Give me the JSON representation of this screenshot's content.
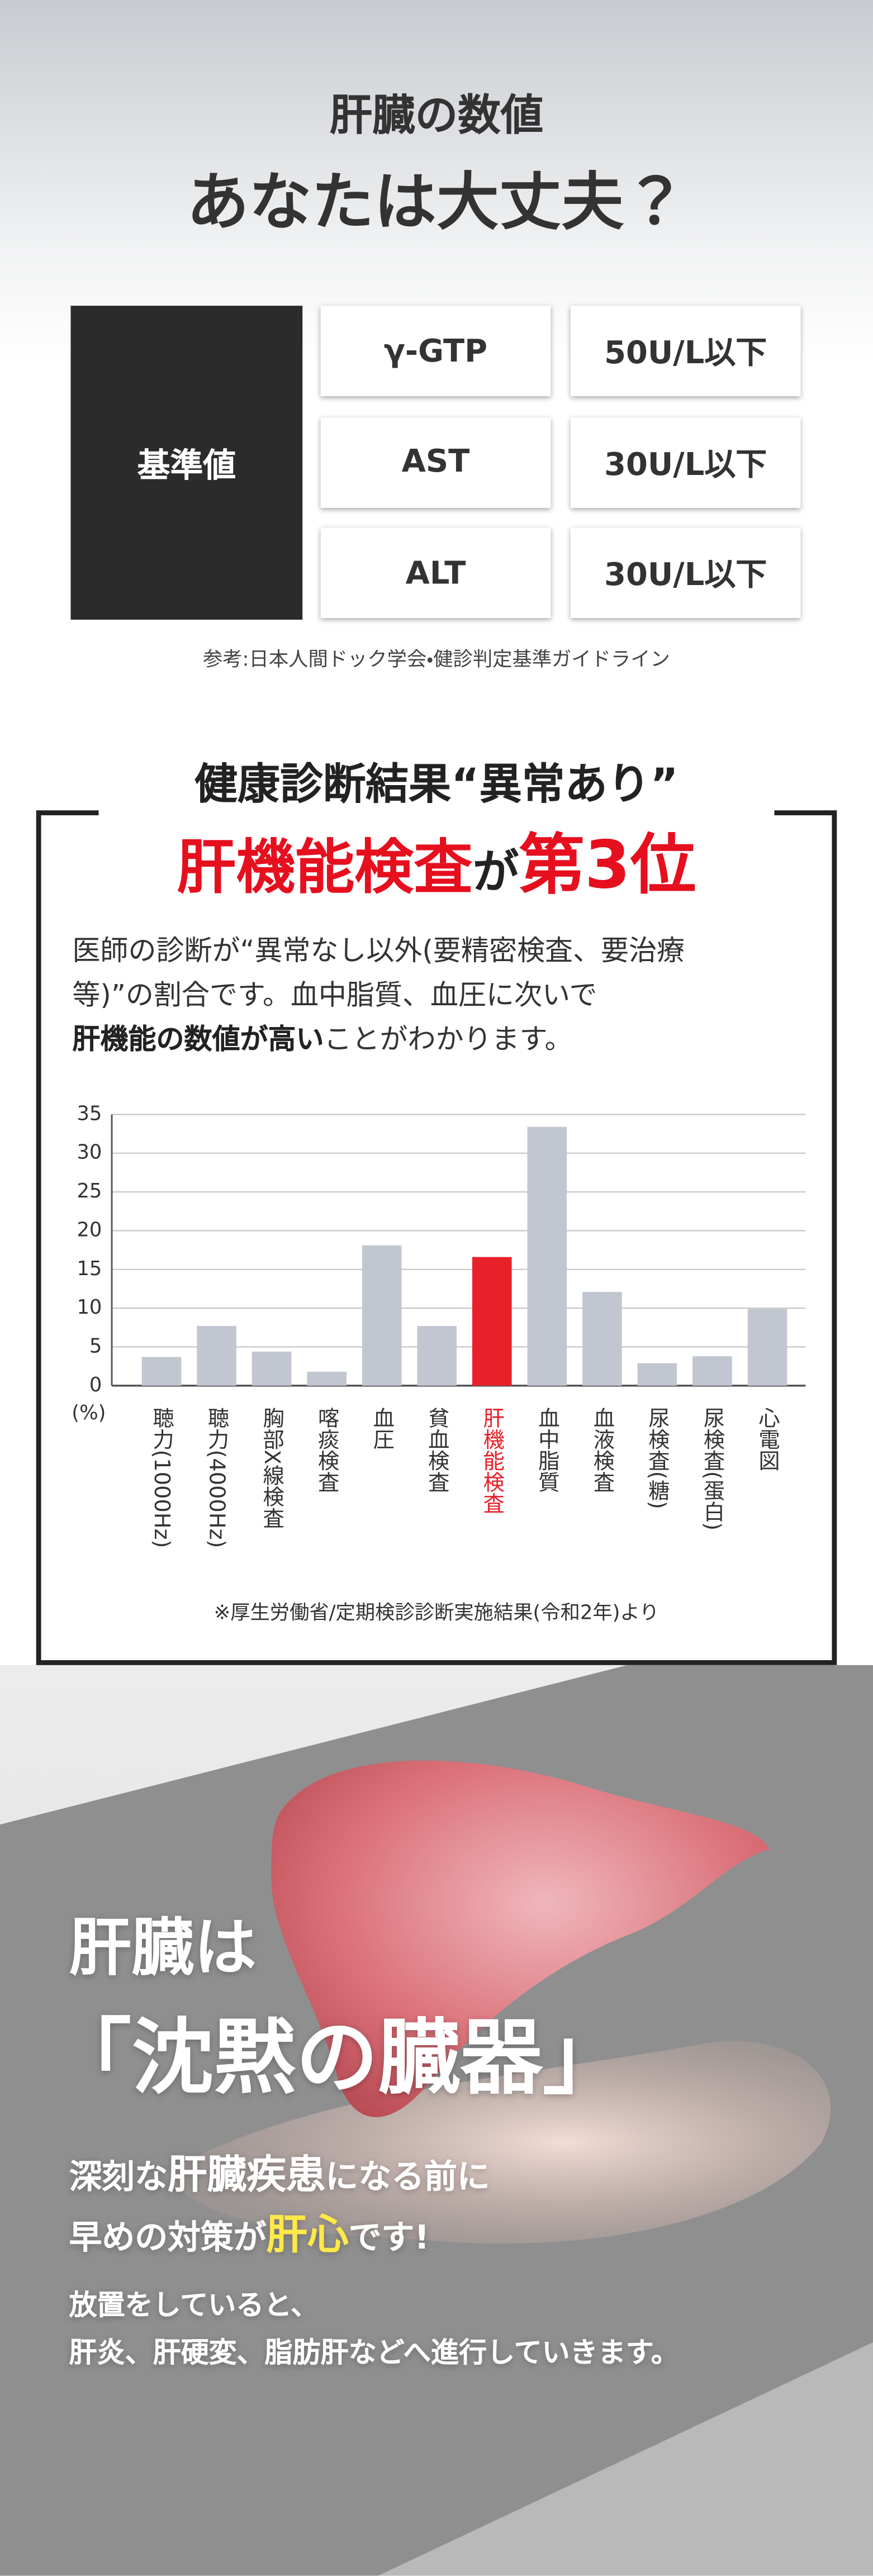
{
  "header": {
    "title": "肝臓の数値",
    "headline": "あなたは大丈夫？"
  },
  "standards": {
    "label": "基準値",
    "rows": [
      [
        "γ-GTP",
        "50U/L以下"
      ],
      [
        "AST",
        "30U/L以下"
      ],
      [
        "ALT",
        "30U/L以下"
      ]
    ],
    "note": "参考:日本人間ドック学会・健診判定基準ガイドライン"
  },
  "ranking": {
    "heading": "健康診断結果“異常あり”",
    "result": [
      "肝機能検査",
      "が",
      "第3位"
    ],
    "body": {
      "lines": [
        "医師の診断が“異常なし以外(要精密検査、要治療",
        "等)”の割合です。血中脂質、血圧に次いで"
      ],
      "emphasis": "肝機能の数値が高い",
      "tail": "ことがわかります。"
    },
    "source": "※厚生労働省/定期検診診断実施結果(令和2年)より"
  },
  "chart_data": {
    "type": "bar",
    "y_unit": "(%)",
    "categories": [
      "聴力(1000Hz)",
      "聴力(4000Hz)",
      "胸部X線検査",
      "喀痰検査",
      "血圧",
      "貧血検査",
      "肝機能検査",
      "血中脂質",
      "血液検査",
      "尿検査(糖)",
      "尿検査(蛋白)",
      "心電図"
    ],
    "values": [
      3.7,
      7.7,
      4.4,
      1.8,
      18.1,
      7.7,
      16.6,
      33.4,
      12.1,
      2.9,
      3.8,
      9.9
    ],
    "colors": [
      "#c1c6d1",
      "#c1c6d1",
      "#c1c6d1",
      "#c1c6d1",
      "#c1c6d1",
      "#c1c6d1",
      "#e8202a",
      "#c1c6d1",
      "#c1c6d1",
      "#c1c6d1",
      "#c1c6d1",
      "#c1c6d1"
    ],
    "ylim": [
      0,
      35
    ],
    "yticks": [
      0,
      5,
      10,
      15,
      20,
      25,
      30,
      35
    ],
    "grid": true
  },
  "closing": {
    "title": "肝臓は",
    "headline": "「沈黙の臓器」",
    "message": [
      [
        "深刻な",
        "肝臓疾患",
        "になる前に"
      ],
      [
        "早めの対策が",
        "肝心",
        "です!"
      ]
    ],
    "body": [
      "放置をしていると、",
      "肝炎、肝硬変、脂肪肝などへ進行していきます。"
    ]
  }
}
